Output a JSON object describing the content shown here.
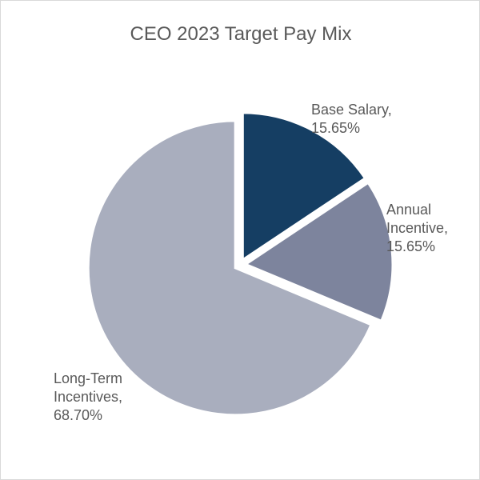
{
  "chart_data": {
    "type": "pie",
    "title": "CEO 2023 Target Pay Mix",
    "slices": [
      {
        "name": "Base Salary",
        "value": 15.65,
        "label_lines": [
          "Base Salary,",
          "15.65%"
        ],
        "color": "#153e63"
      },
      {
        "name": "Annual Incentive",
        "value": 15.65,
        "label_lines": [
          "Annual",
          "Incentive,",
          "15.65%"
        ],
        "color": "#7d849d"
      },
      {
        "name": "Long-Term Incentives",
        "value": 68.7,
        "label_lines": [
          "Long-Term",
          "Incentives,",
          "68.70%"
        ],
        "color": "#a9aebe"
      }
    ],
    "start_angle_deg": 0,
    "direction": "clockwise",
    "exploded": true,
    "legend": "none"
  }
}
